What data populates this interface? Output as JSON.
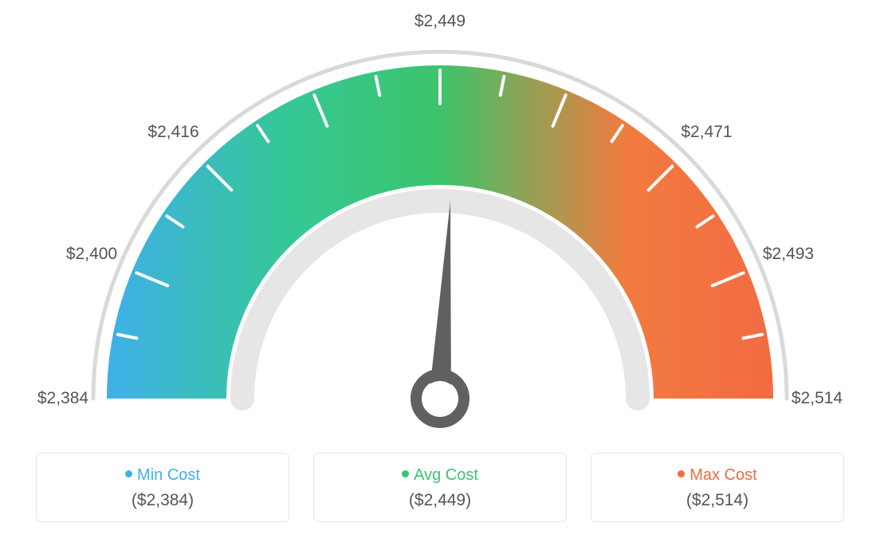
{
  "gauge": {
    "type": "gauge",
    "background_color": "#ffffff",
    "outer_arc_color": "#d9d9d9",
    "inner_arc_color": "#e6e6e6",
    "colors_gradient": [
      "#3fb0e8",
      "#35c894",
      "#3cc46b",
      "#f27b3f",
      "#f26b42"
    ],
    "needle_color": "#606060",
    "needle_ring_outer": "#606060",
    "needle_ring_inner": "#ffffff",
    "tick_color": "#ffffff",
    "tick_count": 17,
    "angle_start_deg": -180,
    "angle_end_deg": 0,
    "labels": [
      {
        "text": "$2,384",
        "angle_deg": -180
      },
      {
        "text": "$2,400",
        "angle_deg": -157.5
      },
      {
        "text": "$2,416",
        "angle_deg": -135
      },
      {
        "text": "$2,449",
        "angle_deg": -90
      },
      {
        "text": "$2,471",
        "angle_deg": -45
      },
      {
        "text": "$2,493",
        "angle_deg": -22.5
      },
      {
        "text": "$2,514",
        "angle_deg": 0
      }
    ],
    "label_fontsize": 21,
    "label_color": "#555555",
    "needle_value_angle_deg": -87
  },
  "legend": {
    "min": {
      "label": "Min Cost",
      "value": "($2,384)",
      "dot_color": "#3fb0e8",
      "text_color": "#3fb0e8"
    },
    "avg": {
      "label": "Avg Cost",
      "value": "($2,449)",
      "dot_color": "#3cc46b",
      "text_color": "#3cc46b"
    },
    "max": {
      "label": "Max Cost",
      "value": "($2,514)",
      "dot_color": "#f26b42",
      "text_color": "#f26b42"
    },
    "card_border_color": "#e6e6e6",
    "card_border_radius": 6,
    "value_color": "#555555"
  }
}
